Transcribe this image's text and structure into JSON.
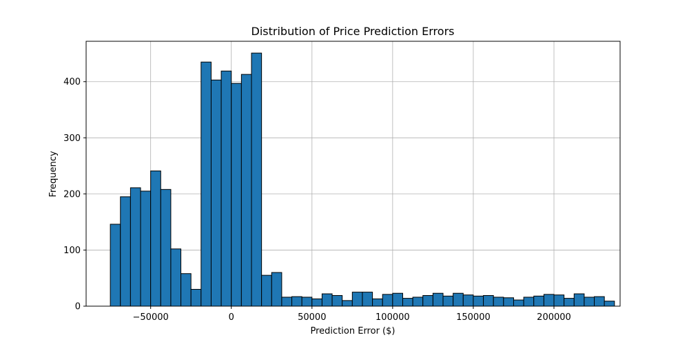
{
  "chart_data": {
    "type": "bar",
    "title": "Distribution of Price Prediction Errors",
    "xlabel": "Prediction Error ($)",
    "ylabel": "Frequency",
    "bin_start": -75000,
    "bin_width": 6250,
    "values": [
      146,
      195,
      211,
      205,
      241,
      208,
      102,
      58,
      30,
      435,
      403,
      419,
      397,
      413,
      451,
      55,
      60,
      16,
      17,
      16,
      13,
      22,
      19,
      10,
      25,
      25,
      13,
      21,
      23,
      14,
      16,
      19,
      23,
      18,
      23,
      20,
      18,
      19,
      16,
      15,
      11,
      16,
      18,
      21,
      20,
      14,
      22,
      16,
      17,
      9
    ],
    "xlim": [
      -90000,
      241000
    ],
    "ylim": [
      0,
      472
    ],
    "xticks": [
      -50000,
      0,
      50000,
      100000,
      150000,
      200000
    ],
    "xtick_labels": [
      "−50000",
      "0",
      "50000",
      "100000",
      "150000",
      "200000"
    ],
    "yticks": [
      0,
      100,
      200,
      300,
      400
    ],
    "ytick_labels": [
      "0",
      "100",
      "200",
      "300",
      "400"
    ],
    "grid": true,
    "bar_color": "#1f77b4",
    "edge_color": "#000000"
  }
}
